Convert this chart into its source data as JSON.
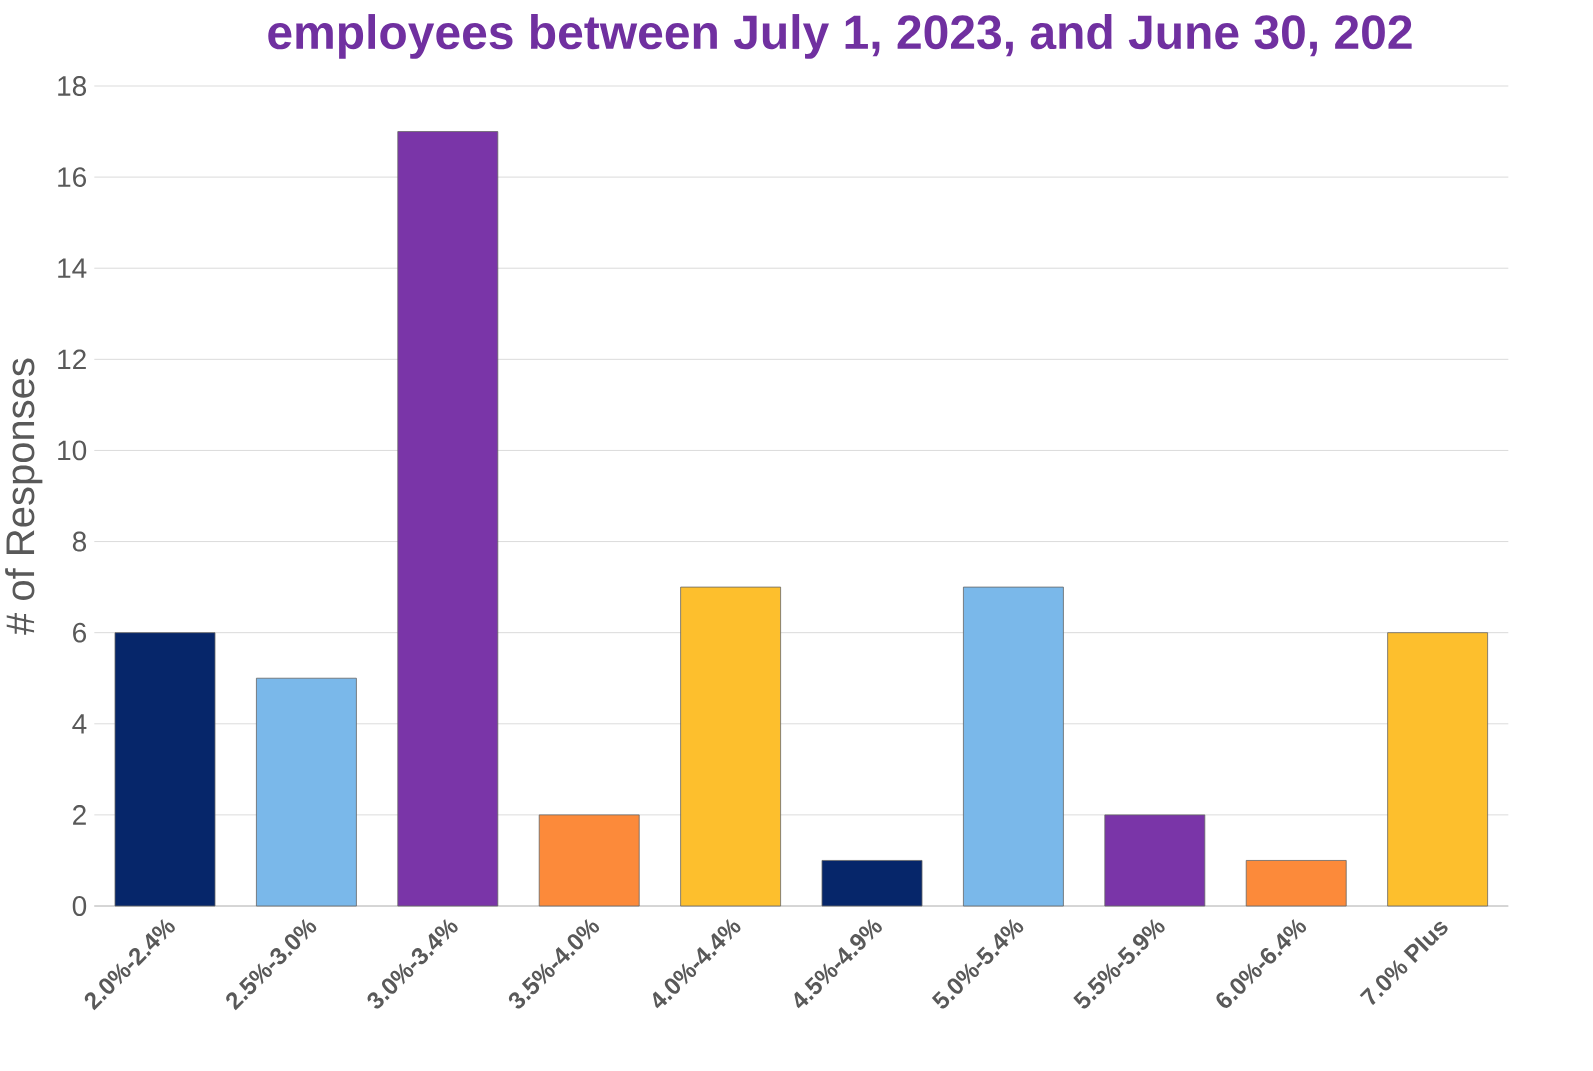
{
  "chart_data": {
    "type": "bar",
    "title": "employees between July 1, 2023, and June 30, 202",
    "ylabel": "# of Responses",
    "categories": [
      "2.0%-2.4%",
      "2.5%-3.0%",
      "3.0%-3.4%",
      "3.5%-4.0%",
      "4.0%-4.4%",
      "4.5%-4.9%",
      "5.0%-5.4%",
      "5.5%-5.9%",
      "6.0%-6.4%",
      "7.0% Plus"
    ],
    "values": [
      6,
      5,
      17,
      2,
      7,
      1,
      7,
      2,
      1,
      6
    ],
    "colors": [
      "#06266a",
      "#7ab8ea",
      "#7a35a8",
      "#fc8a3a",
      "#fdbf2d",
      "#06266a",
      "#7ab8ea",
      "#7a35a8",
      "#fc8a3a",
      "#fdbf2d"
    ],
    "ylim": [
      0,
      18
    ],
    "yticks": [
      0,
      2,
      4,
      6,
      8,
      10,
      12,
      14,
      16,
      18
    ],
    "grid": "y"
  }
}
